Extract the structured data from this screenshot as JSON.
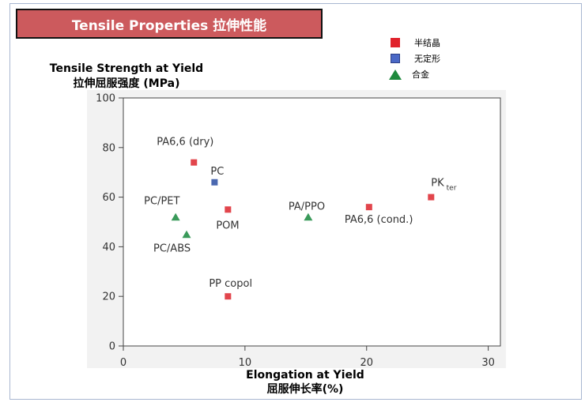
{
  "title": "Tensile Properties 拉伸性能",
  "legend": [
    {
      "label": "半结晶",
      "color": "#e0222b",
      "shape": "square"
    },
    {
      "label": "无定形",
      "color": "#4a68c6",
      "shape": "square"
    },
    {
      "label": "合金",
      "color": "#1f8a3d",
      "shape": "triangle"
    }
  ],
  "chart_data": {
    "type": "scatter",
    "ylabel": "Tensile Strength at Yield",
    "ylabel_cn": "拉伸屈服强度 (MPa)",
    "xlabel": "Elongation at Yield",
    "xlabel_cn": "屈服伸长率(%)",
    "xlim": [
      0,
      31
    ],
    "ylim": [
      0,
      100
    ],
    "xticks": [
      "0",
      "10",
      "20",
      "30"
    ],
    "yticks": [
      "0",
      "20",
      "40",
      "60",
      "80",
      "100"
    ],
    "points": [
      {
        "label": "PA6,6 (dry)",
        "x": 5.8,
        "y": 74,
        "group": "半结晶"
      },
      {
        "label": "PC",
        "x": 7.5,
        "y": 66,
        "group": "无定形"
      },
      {
        "label": "POM",
        "x": 8.6,
        "y": 55,
        "group": "半结晶"
      },
      {
        "label": "PC/PET",
        "x": 4.3,
        "y": 52,
        "group": "合金"
      },
      {
        "label": "PC/ABS",
        "x": 5.2,
        "y": 45,
        "group": "合金"
      },
      {
        "label": "PP copol",
        "x": 8.6,
        "y": 20,
        "group": "半结晶"
      },
      {
        "label": "PA/PPO",
        "x": 15.2,
        "y": 52,
        "group": "合金"
      },
      {
        "label": "PA6,6 (cond.)",
        "x": 20.2,
        "y": 56,
        "group": "半结晶"
      },
      {
        "label": "PK",
        "label_sub": "ter",
        "x": 25.3,
        "y": 60,
        "group": "半结晶"
      }
    ]
  }
}
